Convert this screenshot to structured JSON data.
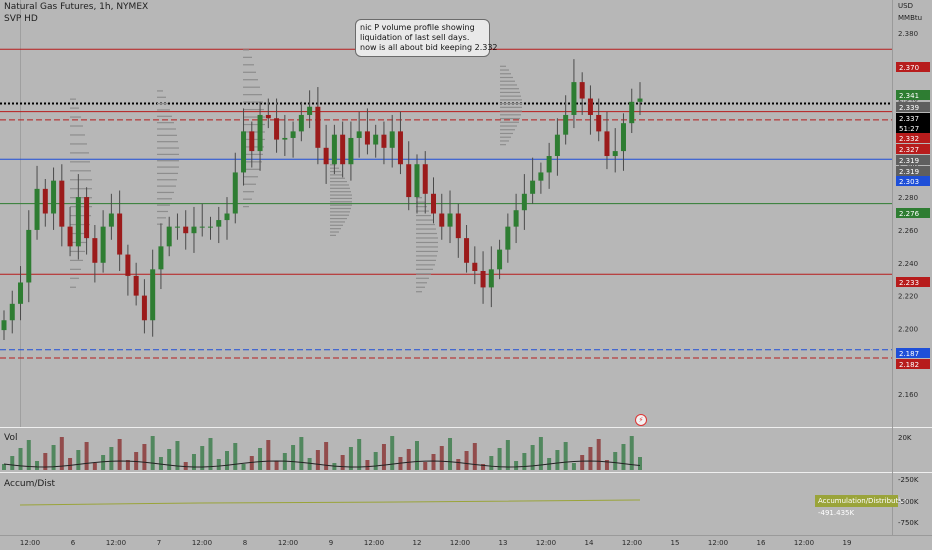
{
  "header": {
    "symbol_title": "Natural Gas Futures, 1h, NYMEX",
    "indicator_svp": "SVP HD",
    "currency": "USD",
    "unit": "MMBtu"
  },
  "annotation": {
    "lines": [
      "nic P volume profile showing",
      "liquidation of last sell days.",
      "now is all about bid keeping 2.332"
    ]
  },
  "panes": {
    "volume_label": "Vol",
    "accum_label": "Accum/Dist",
    "accum_badge": "Accumulation/Distribution  -491.435K",
    "vol_axis": [
      "20K"
    ],
    "accum_axis": [
      "-250K",
      "-500K",
      "-750K"
    ]
  },
  "price_axis": {
    "ticks": [
      "2.380",
      "2.360",
      "2.340",
      "2.320",
      "2.300",
      "2.280",
      "2.260",
      "2.240",
      "2.220",
      "2.200",
      "2.180",
      "2.160"
    ],
    "tags": [
      {
        "text": "2.370",
        "color": "#b71c1c"
      },
      {
        "text": "2.341",
        "color": "#2e7d32"
      },
      {
        "text": "2.339",
        "color": "#5f5f5f"
      },
      {
        "text": "2.337",
        "color": "#000000"
      },
      {
        "text": "51:27",
        "color": "#000000"
      },
      {
        "text": "2.332",
        "color": "#b71c1c"
      },
      {
        "text": "2.327",
        "color": "#b71c1c"
      },
      {
        "text": "2.319",
        "color": "#5f5f5f"
      },
      {
        "text": "2.319",
        "color": "#5f5f5f"
      },
      {
        "text": "2.303",
        "color": "#1e4fd8"
      },
      {
        "text": "2.276",
        "color": "#2e7d32"
      },
      {
        "text": "2.233",
        "color": "#b71c1c"
      },
      {
        "text": "2.187",
        "color": "#1e4fd8"
      },
      {
        "text": "2.182",
        "color": "#b71c1c"
      }
    ]
  },
  "time_axis": [
    "12:00",
    "6",
    "12:00",
    "7",
    "12:00",
    "8",
    "12:00",
    "9",
    "12:00",
    "12",
    "12:00",
    "13",
    "12:00",
    "14",
    "12:00",
    "15",
    "12:00",
    "16",
    "12:00",
    "19"
  ],
  "chart_data": {
    "type": "candlestick",
    "title": "Natural Gas Futures, 1h, NYMEX",
    "ylabel": "USD MMBtu",
    "ylim": [
      2.14,
      2.4
    ],
    "colors": {
      "up": "#2e7d32",
      "down": "#9b1b1b"
    },
    "horizontal_levels": [
      {
        "value": 2.37,
        "style": "solid",
        "color": "#b71c1c"
      },
      {
        "value": 2.337,
        "style": "dotted",
        "color": "#000000"
      },
      {
        "value": 2.332,
        "style": "solid",
        "color": "#b71c1c"
      },
      {
        "value": 2.327,
        "style": "dashed",
        "color": "#b71c1c"
      },
      {
        "value": 2.303,
        "style": "solid",
        "color": "#1e4fd8"
      },
      {
        "value": 2.276,
        "style": "solid",
        "color": "#2e7d32"
      },
      {
        "value": 2.233,
        "style": "solid",
        "color": "#b71c1c"
      },
      {
        "value": 2.187,
        "style": "dashed",
        "color": "#1e4fd8"
      },
      {
        "value": 2.182,
        "style": "dashed",
        "color": "#b71c1c"
      }
    ],
    "close_path": [
      2.205,
      2.215,
      2.228,
      2.26,
      2.285,
      2.27,
      2.29,
      2.262,
      2.25,
      2.28,
      2.255,
      2.24,
      2.262,
      2.27,
      2.245,
      2.232,
      2.22,
      2.205,
      2.236,
      2.25,
      2.262,
      2.262,
      2.258,
      2.262,
      2.262,
      2.262,
      2.266,
      2.27,
      2.295,
      2.32,
      2.308,
      2.33,
      2.328,
      2.315,
      2.316,
      2.32,
      2.33,
      2.335,
      2.31,
      2.3,
      2.318,
      2.3,
      2.316,
      2.32,
      2.312,
      2.318,
      2.31,
      2.32,
      2.3,
      2.28,
      2.3,
      2.282,
      2.27,
      2.262,
      2.27,
      2.255,
      2.24,
      2.235,
      2.225,
      2.236,
      2.248,
      2.262,
      2.272,
      2.282,
      2.29,
      2.295,
      2.305,
      2.318,
      2.33,
      2.35,
      2.34,
      2.33,
      2.32,
      2.305,
      2.308,
      2.325,
      2.338,
      2.34
    ],
    "volume_scale": "0-20K",
    "accum_dist_last": "-491.435K"
  }
}
